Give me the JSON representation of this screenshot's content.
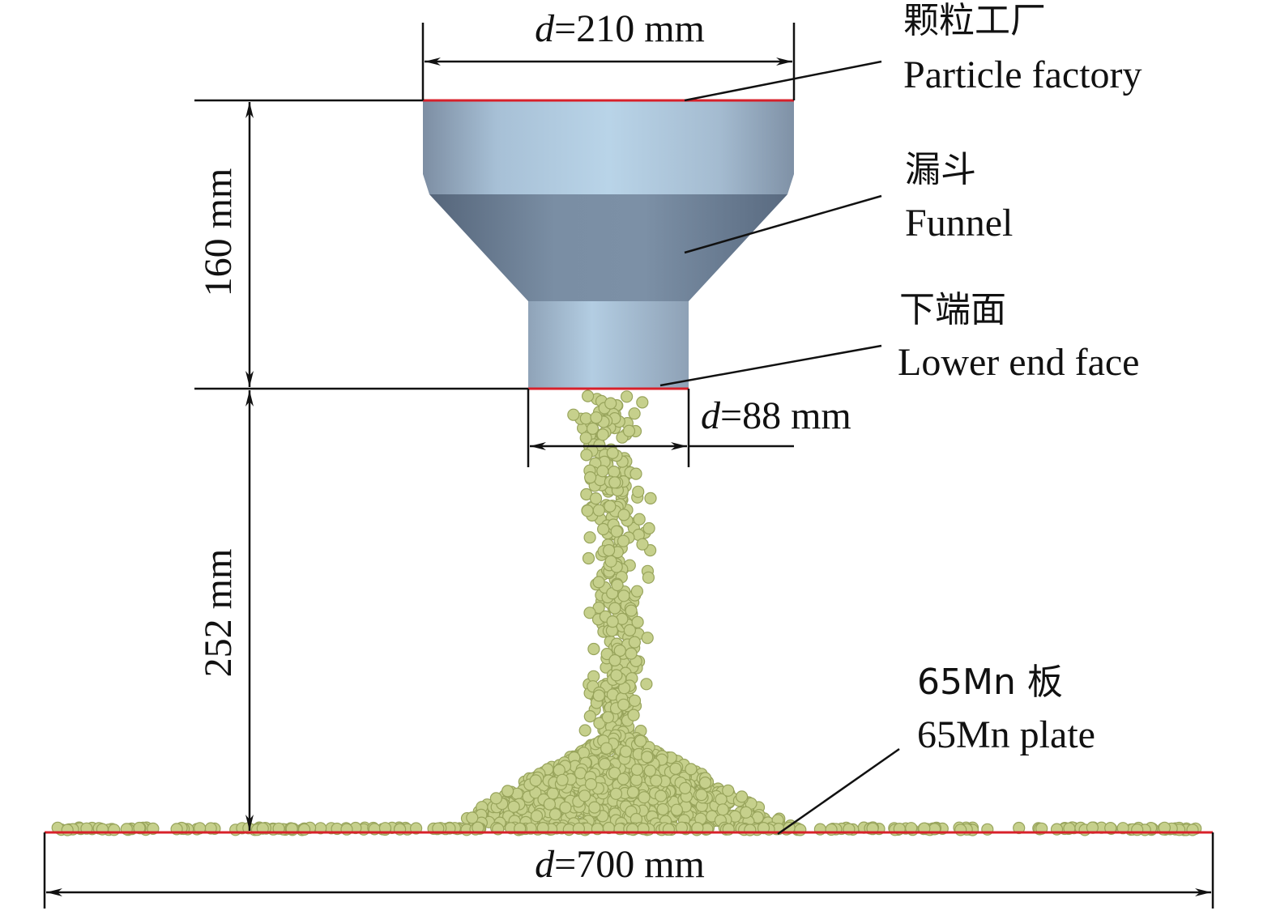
{
  "dimensions": {
    "top_diameter": {
      "var": "d",
      "rest": "=210 mm"
    },
    "outlet_diameter": {
      "var": "d",
      "rest": "=88 mm"
    },
    "plate_diameter": {
      "var": "d",
      "rest": "=700 mm"
    },
    "funnel_height": "160 mm",
    "drop_height": "252 mm"
  },
  "labels": [
    {
      "zh": "颗粒工厂",
      "en": "Particle factory"
    },
    {
      "zh": "漏斗",
      "en": "Funnel"
    },
    {
      "zh": "下端面",
      "en": "Lower end face"
    },
    {
      "zh": "65Mn 板",
      "en": "65Mn plate"
    }
  ]
}
